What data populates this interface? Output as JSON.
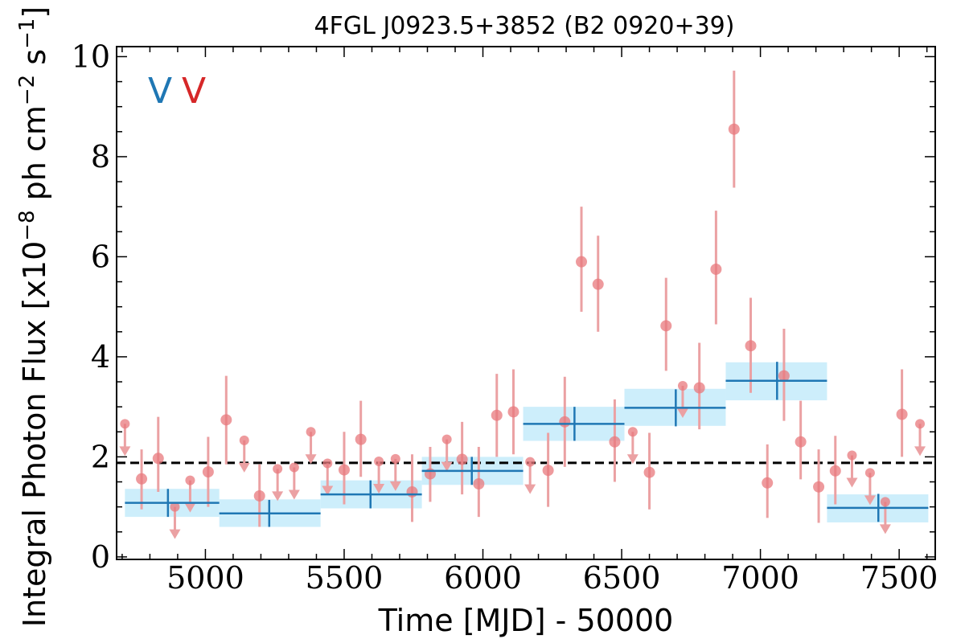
{
  "chart_data": {
    "type": "scatter",
    "title": "4FGL J0923.5+3852 (B2 0920+39)",
    "xlabel": "Time [MJD] - 50000",
    "ylabel": "Integral Photon Flux [x10",
    "ylabel_exp": "−8",
    "ylabel_unit": " ph cm",
    "ylabel_unit_exp": "−2",
    "ylabel_unit2": " s",
    "ylabel_unit2_exp": "−1",
    "ylabel_end": "]",
    "xlim": [
      4680,
      7630
    ],
    "ylim": [
      -0.05,
      10.2
    ],
    "xticks": [
      5000,
      5500,
      6000,
      6500,
      7000,
      7500
    ],
    "yticks": [
      0,
      2,
      4,
      6,
      8,
      10
    ],
    "grid": false,
    "reference_line": {
      "y": 1.88,
      "style": "dashed",
      "color": "#000000"
    },
    "markers": [
      {
        "label": "V",
        "color": "#1f77b4"
      },
      {
        "label": "V",
        "color": "#d62728"
      }
    ],
    "colors": {
      "bins": "#1f77b4",
      "bins_fill": "#cdeefb",
      "points": "#e8787c",
      "errorbars": "#eba1a3"
    },
    "series": [
      {
        "kind": "binned",
        "bins": [
          {
            "x0": 4710,
            "x1": 5050,
            "xc": 4865,
            "y": 1.08,
            "band": [
              0.8,
              1.36
            ],
            "err": 0.28
          },
          {
            "x0": 5050,
            "x1": 5415,
            "xc": 5230,
            "y": 0.87,
            "band": [
              0.6,
              1.15
            ],
            "err": 0.27
          },
          {
            "x0": 5415,
            "x1": 5780,
            "xc": 5595,
            "y": 1.25,
            "band": [
              0.97,
              1.53
            ],
            "err": 0.28
          },
          {
            "x0": 5780,
            "x1": 6145,
            "xc": 5960,
            "y": 1.72,
            "band": [
              1.44,
              2.0
            ],
            "err": 0.28
          },
          {
            "x0": 6145,
            "x1": 6510,
            "xc": 6330,
            "y": 2.66,
            "band": [
              2.32,
              3.0
            ],
            "err": 0.34
          },
          {
            "x0": 6510,
            "x1": 6875,
            "xc": 6695,
            "y": 2.98,
            "band": [
              2.62,
              3.36
            ],
            "err": 0.37
          },
          {
            "x0": 6875,
            "x1": 7240,
            "xc": 7060,
            "y": 3.52,
            "band": [
              3.13,
              3.89
            ],
            "err": 0.38
          },
          {
            "x0": 7240,
            "x1": 7605,
            "xc": 7425,
            "y": 0.98,
            "band": [
              0.69,
              1.25
            ],
            "err": 0.28
          }
        ]
      },
      {
        "kind": "points",
        "detections": [
          {
            "x": 4770,
            "y": 1.56,
            "lo": 0.95,
            "hi": 2.15
          },
          {
            "x": 4830,
            "y": 1.97,
            "lo": 1.3,
            "hi": 2.8
          },
          {
            "x": 5010,
            "y": 1.7,
            "lo": 1.0,
            "hi": 2.4
          },
          {
            "x": 5075,
            "y": 2.74,
            "lo": 1.85,
            "hi": 3.62
          },
          {
            "x": 5195,
            "y": 1.22,
            "lo": 0.6,
            "hi": 1.85
          },
          {
            "x": 5500,
            "y": 1.74,
            "lo": 1.05,
            "hi": 2.5
          },
          {
            "x": 5560,
            "y": 2.35,
            "lo": 1.6,
            "hi": 3.12
          },
          {
            "x": 5745,
            "y": 1.3,
            "lo": 0.7,
            "hi": 2.05
          },
          {
            "x": 5810,
            "y": 1.66,
            "lo": 1.1,
            "hi": 2.2
          },
          {
            "x": 5925,
            "y": 1.95,
            "lo": 1.25,
            "hi": 2.7
          },
          {
            "x": 5985,
            "y": 1.46,
            "lo": 0.8,
            "hi": 2.2
          },
          {
            "x": 6050,
            "y": 2.83,
            "lo": 2.0,
            "hi": 3.66
          },
          {
            "x": 6110,
            "y": 2.9,
            "lo": 2.05,
            "hi": 3.75
          },
          {
            "x": 6235,
            "y": 1.73,
            "lo": 1.0,
            "hi": 2.48
          },
          {
            "x": 6295,
            "y": 2.7,
            "lo": 1.8,
            "hi": 3.6
          },
          {
            "x": 6355,
            "y": 5.9,
            "lo": 4.9,
            "hi": 7.0
          },
          {
            "x": 6415,
            "y": 5.45,
            "lo": 4.5,
            "hi": 6.42
          },
          {
            "x": 6475,
            "y": 2.3,
            "lo": 1.5,
            "hi": 3.15
          },
          {
            "x": 6600,
            "y": 1.69,
            "lo": 0.95,
            "hi": 2.48
          },
          {
            "x": 6660,
            "y": 4.62,
            "lo": 3.72,
            "hi": 5.58
          },
          {
            "x": 6780,
            "y": 3.38,
            "lo": 2.55,
            "hi": 4.28
          },
          {
            "x": 6840,
            "y": 5.75,
            "lo": 4.65,
            "hi": 6.92
          },
          {
            "x": 6905,
            "y": 8.55,
            "lo": 7.38,
            "hi": 9.72
          },
          {
            "x": 6965,
            "y": 4.22,
            "lo": 3.28,
            "hi": 5.18
          },
          {
            "x": 7025,
            "y": 1.48,
            "lo": 0.78,
            "hi": 2.25
          },
          {
            "x": 7085,
            "y": 3.62,
            "lo": 2.72,
            "hi": 4.56
          },
          {
            "x": 7145,
            "y": 2.3,
            "lo": 1.55,
            "hi": 3.12
          },
          {
            "x": 7210,
            "y": 1.4,
            "lo": 0.68,
            "hi": 2.15
          },
          {
            "x": 7270,
            "y": 1.72,
            "lo": 1.05,
            "hi": 2.42
          },
          {
            "x": 7510,
            "y": 2.85,
            "lo": 2.0,
            "hi": 3.75
          }
        ],
        "upper_limits": [
          {
            "x": 4710,
            "y": 2.66
          },
          {
            "x": 4890,
            "y": 1.0
          },
          {
            "x": 4945,
            "y": 1.53
          },
          {
            "x": 5140,
            "y": 2.33
          },
          {
            "x": 5260,
            "y": 1.76
          },
          {
            "x": 5320,
            "y": 1.79
          },
          {
            "x": 5380,
            "y": 2.5
          },
          {
            "x": 5440,
            "y": 1.87
          },
          {
            "x": 5625,
            "y": 1.91
          },
          {
            "x": 5685,
            "y": 1.96
          },
          {
            "x": 5870,
            "y": 2.35
          },
          {
            "x": 6170,
            "y": 1.9
          },
          {
            "x": 6540,
            "y": 2.5
          },
          {
            "x": 6720,
            "y": 3.42
          },
          {
            "x": 7330,
            "y": 2.03
          },
          {
            "x": 7395,
            "y": 1.68
          },
          {
            "x": 7450,
            "y": 1.1
          },
          {
            "x": 7575,
            "y": 2.66
          }
        ]
      }
    ]
  }
}
